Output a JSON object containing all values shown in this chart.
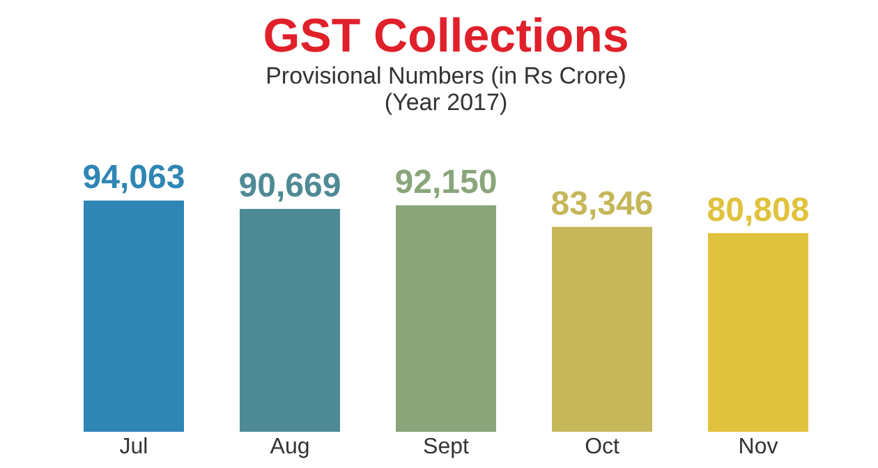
{
  "chart_data": {
    "type": "bar",
    "title": "GST Collections",
    "subtitle": "Provisional Numbers (in Rs Crore)",
    "annotations": [
      "(Year 2017)"
    ],
    "categories": [
      "Jul",
      "Aug",
      "Sept",
      "Oct",
      "Nov"
    ],
    "values": [
      94063,
      90669,
      92150,
      83346,
      80808
    ],
    "colors": [
      "#2e86b5",
      "#4e8a96",
      "#8aa57a",
      "#c5b75a",
      "#e0c23c"
    ],
    "value_labels": [
      "94,063",
      "90,669",
      "92,150",
      "83,346",
      "80,808"
    ],
    "grid": false,
    "legend": false,
    "tick_labels": "x"
  }
}
